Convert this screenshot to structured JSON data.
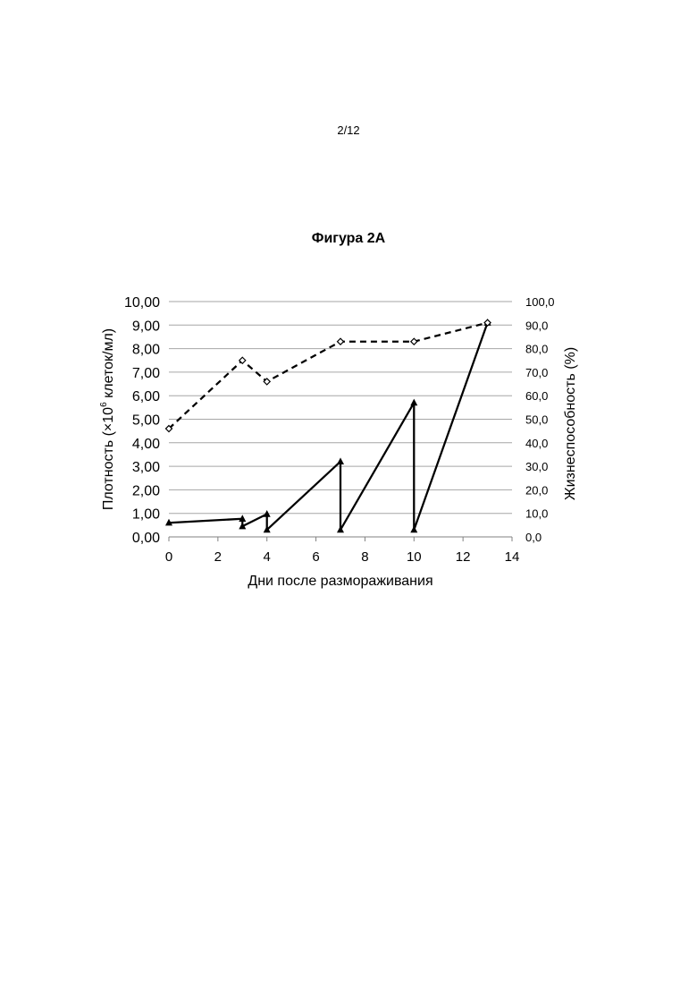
{
  "page": {
    "number": "2/12",
    "figure_title": "Фигура 2А"
  },
  "chart_data": {
    "type": "line",
    "title": "Фигура 2А",
    "xlabel": "Дни после размораживания",
    "ylabel": "Плотность (×10⁶ клеток/мл)",
    "ylabel_parts": {
      "before": "Плотность (×10",
      "sup": "6",
      "after": " клеток/мл)"
    },
    "y2label": "Жизнеспособность (%)",
    "xlim": [
      0,
      14
    ],
    "ylim": [
      0,
      10
    ],
    "y2lim": [
      0,
      100
    ],
    "x_ticks": [
      0,
      2,
      4,
      6,
      8,
      10,
      12,
      14
    ],
    "x_tick_labels": [
      "0",
      "2",
      "4",
      "6",
      "8",
      "10",
      "12",
      "14"
    ],
    "y_ticks": [
      0,
      1,
      2,
      3,
      4,
      5,
      6,
      7,
      8,
      9,
      10
    ],
    "y_tick_labels": [
      "0,00",
      "1,00",
      "2,00",
      "3,00",
      "4,00",
      "5,00",
      "6,00",
      "7,00",
      "8,00",
      "9,00",
      "10,00"
    ],
    "y2_tick_labels": [
      "0,0",
      "10,0",
      "20,0",
      "30,0",
      "40,0",
      "50,0",
      "60,0",
      "70,0",
      "80,0",
      "90,0",
      "100,0"
    ],
    "grid": true,
    "legend": "none",
    "series": [
      {
        "axis": "left",
        "style": "solid",
        "marker": "triangle",
        "color": "#000000",
        "points": [
          [
            0,
            0.6
          ],
          [
            3,
            0.77
          ],
          [
            3,
            0.45
          ],
          [
            4,
            0.97
          ],
          [
            4,
            0.3
          ],
          [
            7,
            3.2
          ],
          [
            7,
            0.3
          ],
          [
            10,
            5.7
          ],
          [
            10,
            0.3
          ],
          [
            13,
            9.1
          ]
        ]
      },
      {
        "axis": "right",
        "style": "dashed",
        "marker": "diamond",
        "color": "#000000",
        "points": [
          [
            0,
            46
          ],
          [
            3,
            75
          ],
          [
            4,
            66
          ],
          [
            7,
            83
          ],
          [
            10,
            83
          ],
          [
            13,
            91
          ]
        ]
      }
    ]
  }
}
